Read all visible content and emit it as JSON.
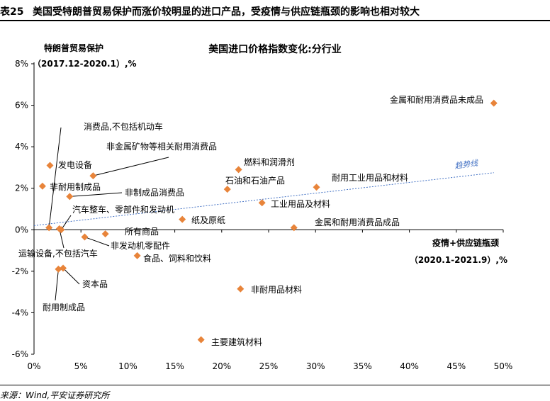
{
  "figure_number": "表25",
  "figure_title": "美国受特朗普贸易保护而涨价较明显的进口产品，受疫情与供应链瓶颈的影响也相对较大",
  "source": "来源：Wind,平安证券研究所",
  "colors": {
    "point": "#E8843A",
    "trend": "#4472C4",
    "axis": "#000000"
  },
  "chart_data": {
    "type": "scatter",
    "title": "美国进口价格指数变化:分行业",
    "ylabel_line1": "特朗普贸易保护",
    "ylabel_line2": "（2017.12-2020.1）,%",
    "xlabel_line1": "疫情+供应链瓶颈",
    "xlabel_line2": "（2020.1-2021.9）,%",
    "trend_label": "趋势线",
    "xlim": [
      0,
      50
    ],
    "ylim": [
      -6,
      8
    ],
    "x_ticks": [
      {
        "v": 0,
        "label": "0%"
      },
      {
        "v": 5,
        "label": "5%"
      },
      {
        "v": 10,
        "label": "10%"
      },
      {
        "v": 15,
        "label": "15%"
      },
      {
        "v": 20,
        "label": "20%"
      },
      {
        "v": 25,
        "label": "25%"
      },
      {
        "v": 30,
        "label": "30%"
      },
      {
        "v": 35,
        "label": "35%"
      },
      {
        "v": 40,
        "label": "40%"
      },
      {
        "v": 45,
        "label": "45%"
      },
      {
        "v": 50,
        "label": "50%"
      }
    ],
    "y_ticks": [
      {
        "v": -6,
        "label": "-6%"
      },
      {
        "v": -4,
        "label": "-4%"
      },
      {
        "v": -2,
        "label": "-2%"
      },
      {
        "v": 0,
        "label": "0%"
      },
      {
        "v": 2,
        "label": "2%"
      },
      {
        "v": 4,
        "label": "4%"
      },
      {
        "v": 6,
        "label": "6%"
      },
      {
        "v": 8,
        "label": "8%"
      }
    ],
    "trend": {
      "x0": 0,
      "y0": 0.2,
      "x1": 49,
      "y1": 2.75
    },
    "points": [
      {
        "label": "金属和耐用消费品未成品",
        "x": 49.0,
        "y": 6.1
      },
      {
        "label": "消费品,不包括机动车",
        "x": 1.6,
        "y": 0.1
      },
      {
        "label": "发电设备",
        "x": 1.7,
        "y": 3.1
      },
      {
        "label": "非金属矿物等相关耐用消费品",
        "x": 6.3,
        "y": 2.6
      },
      {
        "label": "非耐用制成品",
        "x": 0.9,
        "y": 2.1
      },
      {
        "label": "非制成品消费品",
        "x": 3.8,
        "y": 1.6
      },
      {
        "label": "汽车整车、零部件和发动机",
        "x": 2.9,
        "y": 0.0
      },
      {
        "label": "运输设备,不包括汽车",
        "x": 2.7,
        "y": 0.05
      },
      {
        "label": "所有商品",
        "x": 7.6,
        "y": -0.2
      },
      {
        "label": "非发动机零配件",
        "x": 5.4,
        "y": -0.35
      },
      {
        "label": "食品、饲料和饮料",
        "x": 11.0,
        "y": -1.25
      },
      {
        "label": "资本品",
        "x": 3.1,
        "y": -1.85
      },
      {
        "label": "耐用制成品",
        "x": 2.6,
        "y": -1.9
      },
      {
        "label": "燃料和润滑剂",
        "x": 21.8,
        "y": 2.9
      },
      {
        "label": "石油和石油产品",
        "x": 20.6,
        "y": 1.95
      },
      {
        "label": "耐用工业用品和材料",
        "x": 30.1,
        "y": 2.05
      },
      {
        "label": "工业用品及材料",
        "x": 24.3,
        "y": 1.3
      },
      {
        "label": "纸及原纸",
        "x": 15.8,
        "y": 0.5
      },
      {
        "label": "金属和耐用消费品成品",
        "x": 27.7,
        "y": 0.1
      },
      {
        "label": "非耐用品材料",
        "x": 22.0,
        "y": -2.85
      },
      {
        "label": "主要建筑材料",
        "x": 17.8,
        "y": -5.3
      }
    ]
  }
}
